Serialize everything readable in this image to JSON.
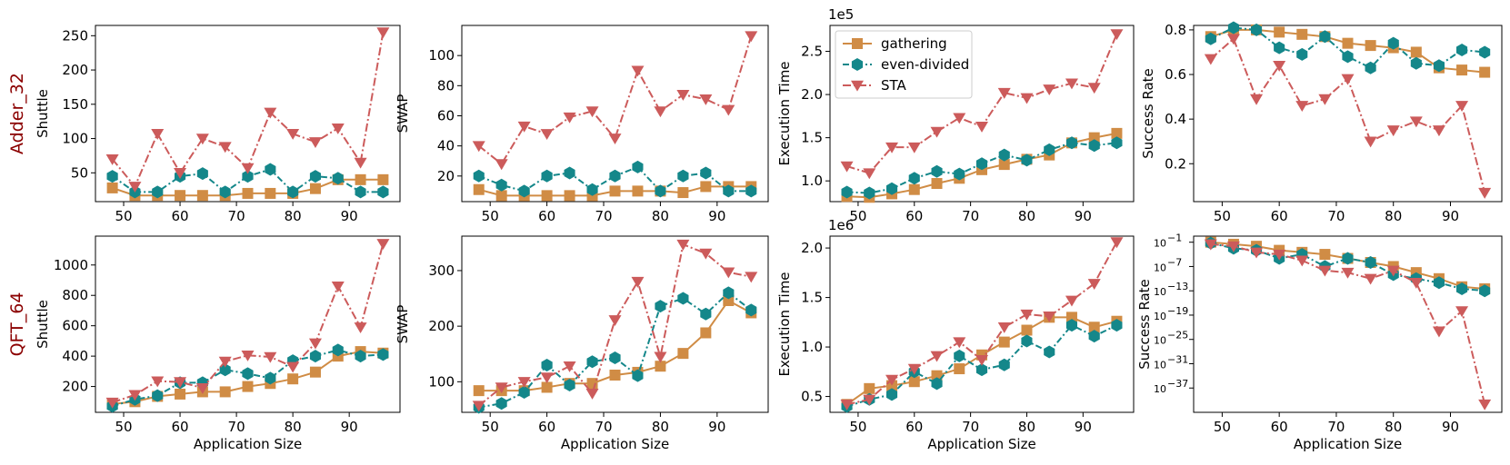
{
  "chart_data": [
    {
      "type": "line",
      "panel": "row1-col1",
      "row_label": "Adder_32",
      "ylabel": "Shuttle",
      "xlabel": "",
      "x": [
        48,
        52,
        56,
        60,
        64,
        68,
        72,
        76,
        80,
        84,
        88,
        92,
        96
      ],
      "xticks": [
        50,
        60,
        70,
        80,
        90
      ],
      "xlim": [
        45,
        99
      ],
      "ylim": [
        8,
        265
      ],
      "yticks": [
        50,
        100,
        150,
        200,
        250
      ],
      "ytick_labels": [
        "50",
        "100",
        "150",
        "200",
        "250"
      ],
      "series": [
        {
          "name": "gathering",
          "values": [
            28,
            17,
            17,
            17,
            17,
            17,
            20,
            20,
            20,
            27,
            40,
            40,
            40
          ]
        },
        {
          "name": "even-divided",
          "values": [
            45,
            22,
            22,
            45,
            49,
            22,
            45,
            55,
            22,
            45,
            42,
            22,
            22
          ]
        },
        {
          "name": "STA",
          "values": [
            70,
            30,
            107,
            50,
            100,
            88,
            57,
            138,
            107,
            95,
            115,
            65,
            255
          ]
        }
      ]
    },
    {
      "type": "line",
      "panel": "row1-col2",
      "ylabel": "SWAP",
      "xlabel": "",
      "x": [
        48,
        52,
        56,
        60,
        64,
        68,
        72,
        76,
        80,
        84,
        88,
        92,
        96
      ],
      "xticks": [
        50,
        60,
        70,
        80,
        90
      ],
      "xlim": [
        45,
        99
      ],
      "ylim": [
        3,
        120
      ],
      "yticks": [
        20,
        40,
        60,
        80,
        100
      ],
      "ytick_labels": [
        "20",
        "40",
        "60",
        "80",
        "100"
      ],
      "series": [
        {
          "name": "gathering",
          "values": [
            11,
            7,
            7,
            7,
            7,
            7,
            10,
            10,
            10,
            9,
            13,
            13,
            13
          ]
        },
        {
          "name": "even-divided",
          "values": [
            20,
            14,
            10,
            20,
            22,
            11,
            20,
            26,
            10,
            20,
            22,
            10,
            10
          ]
        },
        {
          "name": "STA",
          "values": [
            40,
            28,
            53,
            48,
            59,
            63,
            45,
            90,
            63,
            74,
            71,
            64,
            113
          ]
        }
      ]
    },
    {
      "type": "line",
      "panel": "row1-col3",
      "ylabel": "Execution Time",
      "xlabel": "",
      "offset_text": "1e5",
      "x": [
        48,
        52,
        56,
        60,
        64,
        68,
        72,
        76,
        80,
        84,
        88,
        92,
        96
      ],
      "xticks": [
        50,
        60,
        70,
        80,
        90
      ],
      "xlim": [
        45,
        99
      ],
      "ylim": [
        0.76,
        2.8
      ],
      "yticks": [
        1.0,
        1.5,
        2.0,
        2.5
      ],
      "ytick_labels": [
        "1.0",
        "1.5",
        "2.0",
        "2.5"
      ],
      "series": [
        {
          "name": "gathering",
          "values": [
            0.82,
            0.81,
            0.85,
            0.9,
            0.97,
            1.03,
            1.13,
            1.19,
            1.25,
            1.3,
            1.44,
            1.5,
            1.55
          ]
        },
        {
          "name": "even-divided",
          "values": [
            0.87,
            0.86,
            0.91,
            1.03,
            1.11,
            1.08,
            1.2,
            1.3,
            1.24,
            1.36,
            1.44,
            1.41,
            1.44
          ]
        },
        {
          "name": "STA",
          "values": [
            1.17,
            1.09,
            1.39,
            1.39,
            1.57,
            1.73,
            1.63,
            2.02,
            1.96,
            2.06,
            2.13,
            2.08,
            2.7
          ]
        }
      ],
      "legend": {
        "position": "top-left",
        "entries": [
          "gathering",
          "even-divided",
          "STA"
        ]
      }
    },
    {
      "type": "line",
      "panel": "row1-col4",
      "ylabel": "Success Rate",
      "xlabel": "",
      "x": [
        48,
        52,
        56,
        60,
        64,
        68,
        72,
        76,
        80,
        84,
        88,
        92,
        96
      ],
      "xticks": [
        50,
        60,
        70,
        80,
        90
      ],
      "xlim": [
        45,
        99
      ],
      "ylim": [
        0.03,
        0.82
      ],
      "yticks": [
        0.2,
        0.4,
        0.6,
        0.8
      ],
      "ytick_labels": [
        "0.2",
        "0.4",
        "0.6",
        "0.8"
      ],
      "series": [
        {
          "name": "gathering",
          "values": [
            0.77,
            0.8,
            0.8,
            0.79,
            0.78,
            0.77,
            0.74,
            0.73,
            0.72,
            0.7,
            0.63,
            0.62,
            0.61
          ]
        },
        {
          "name": "even-divided",
          "values": [
            0.76,
            0.81,
            0.8,
            0.72,
            0.69,
            0.77,
            0.68,
            0.63,
            0.74,
            0.65,
            0.64,
            0.71,
            0.7
          ]
        },
        {
          "name": "STA",
          "values": [
            0.67,
            0.76,
            0.49,
            0.64,
            0.46,
            0.49,
            0.58,
            0.3,
            0.35,
            0.39,
            0.35,
            0.46,
            0.07
          ]
        }
      ]
    },
    {
      "type": "line",
      "panel": "row2-col1",
      "row_label": "QFT_64",
      "ylabel": "Shuttle",
      "xlabel": "Application Size",
      "x": [
        48,
        52,
        56,
        60,
        64,
        68,
        72,
        76,
        80,
        84,
        88,
        92,
        96
      ],
      "xticks": [
        50,
        60,
        70,
        80,
        90
      ],
      "xlim": [
        45,
        99
      ],
      "ylim": [
        30,
        1190
      ],
      "yticks": [
        200,
        400,
        600,
        800,
        1000
      ],
      "ytick_labels": [
        "200",
        "400",
        "600",
        "800",
        "1000"
      ],
      "series": [
        {
          "name": "gathering",
          "values": [
            85,
            100,
            135,
            150,
            165,
            165,
            200,
            220,
            250,
            295,
            400,
            430,
            420
          ]
        },
        {
          "name": "even-divided",
          "values": [
            70,
            115,
            140,
            225,
            225,
            310,
            285,
            255,
            370,
            400,
            440,
            400,
            410
          ]
        },
        {
          "name": "STA",
          "values": [
            95,
            145,
            235,
            230,
            190,
            365,
            405,
            395,
            330,
            485,
            860,
            590,
            1140
          ]
        }
      ]
    },
    {
      "type": "line",
      "panel": "row2-col2",
      "ylabel": "SWAP",
      "xlabel": "Application Size",
      "x": [
        48,
        52,
        56,
        60,
        64,
        68,
        72,
        76,
        80,
        84,
        88,
        92,
        96
      ],
      "xticks": [
        50,
        60,
        70,
        80,
        90
      ],
      "xlim": [
        45,
        99
      ],
      "ylim": [
        45,
        362
      ],
      "yticks": [
        100,
        200,
        300
      ],
      "ytick_labels": [
        "100",
        "200",
        "300"
      ],
      "series": [
        {
          "name": "gathering",
          "values": [
            84,
            84,
            84,
            90,
            97,
            97,
            112,
            117,
            128,
            151,
            188,
            246,
            224
          ]
        },
        {
          "name": "even-divided",
          "values": [
            54,
            61,
            81,
            130,
            94,
            136,
            143,
            111,
            236,
            250,
            222,
            260,
            229
          ]
        },
        {
          "name": "STA",
          "values": [
            57,
            90,
            100,
            108,
            128,
            79,
            211,
            280,
            145,
            347,
            331,
            297,
            289
          ]
        }
      ]
    },
    {
      "type": "line",
      "panel": "row2-col3",
      "ylabel": "Execution Time",
      "xlabel": "Application Size",
      "offset_text": "1e6",
      "x": [
        48,
        52,
        56,
        60,
        64,
        68,
        72,
        76,
        80,
        84,
        88,
        92,
        96
      ],
      "xticks": [
        50,
        60,
        70,
        80,
        90
      ],
      "xlim": [
        45,
        99
      ],
      "ylim": [
        0.34,
        2.12
      ],
      "yticks": [
        0.5,
        1.0,
        1.5,
        2.0
      ],
      "ytick_labels": [
        "0.5",
        "1.0",
        "1.5",
        "2.0"
      ],
      "series": [
        {
          "name": "gathering",
          "values": [
            0.42,
            0.58,
            0.61,
            0.65,
            0.71,
            0.78,
            0.92,
            1.05,
            1.17,
            1.3,
            1.3,
            1.2,
            1.26
          ]
        },
        {
          "name": "even-divided",
          "values": [
            0.4,
            0.47,
            0.52,
            0.75,
            0.63,
            0.91,
            0.77,
            0.82,
            1.06,
            0.95,
            1.22,
            1.11,
            1.22
          ]
        },
        {
          "name": "STA",
          "values": [
            0.42,
            0.47,
            0.67,
            0.78,
            0.91,
            1.05,
            0.87,
            1.2,
            1.33,
            1.31,
            1.47,
            1.64,
            2.06
          ]
        }
      ]
    },
    {
      "type": "line",
      "panel": "row2-col4",
      "ylabel": "Success Rate",
      "xlabel": "Application Size",
      "yscale": "log",
      "x": [
        48,
        52,
        56,
        60,
        64,
        68,
        72,
        76,
        80,
        84,
        88,
        92,
        96
      ],
      "xticks": [
        50,
        60,
        70,
        80,
        90
      ],
      "xlim": [
        45,
        99
      ],
      "ylim_log10": [
        -43,
        0.5
      ],
      "ytick_exponents": [
        -1,
        -7,
        -13,
        -19,
        -25,
        -31,
        -37
      ],
      "ytick_labels": [
        "10",
        "10",
        "10",
        "10",
        "10",
        "10",
        "10"
      ],
      "ytick_sup": [
        "−1",
        "−7",
        "−13",
        "−19",
        "−25",
        "−31",
        "−37"
      ],
      "series": [
        {
          "name": "gathering",
          "log10_values": [
            -1,
            -1.5,
            -2,
            -3,
            -3.5,
            -4,
            -5,
            -6,
            -7,
            -8.5,
            -10,
            -12,
            -12.5
          ]
        },
        {
          "name": "even-divided",
          "log10_values": [
            -1.2,
            -2.5,
            -3,
            -5,
            -4,
            -7,
            -5,
            -6,
            -9,
            -10,
            -11,
            -12.5,
            -13
          ]
        },
        {
          "name": "STA",
          "log10_values": [
            -1.5,
            -2,
            -3.5,
            -4,
            -5.5,
            -8,
            -8.5,
            -10,
            -8,
            -11,
            -23,
            -18,
            -41
          ]
        }
      ]
    }
  ],
  "styles": {
    "gathering": {
      "color": "#d08c45",
      "marker": "square",
      "dash": ""
    },
    "even-divided": {
      "color": "#14878a",
      "marker": "hexagon",
      "dash": "7,3,2,3"
    },
    "STA": {
      "color": "#cc5b5b",
      "marker": "triangle-down",
      "dash": "9,3,2,3"
    }
  }
}
